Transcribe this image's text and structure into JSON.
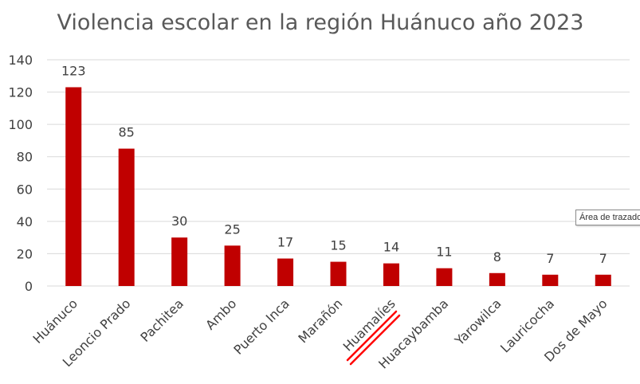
{
  "chart_data": {
    "type": "bar",
    "title": "Violencia escolar en la región Huánuco año 2023",
    "categories": [
      "Huánuco",
      "Leoncio Prado",
      "Pachitea",
      "Ambo",
      "Puerto Inca",
      "Marañón",
      "Huamalíes",
      "Huacaybamba",
      "Yarowilca",
      "Lauricocha",
      "Dos de Mayo"
    ],
    "values": [
      123,
      85,
      30,
      25,
      17,
      15,
      14,
      11,
      8,
      7,
      7
    ],
    "ylim": [
      0,
      140
    ],
    "yticks": [
      0,
      20,
      40,
      60,
      80,
      100,
      120,
      140
    ],
    "grid": true,
    "data_labels": true,
    "bar_color": "#c00000"
  },
  "annotation": {
    "tooltip": "Área de trazado",
    "mark_color": "#ff0000"
  }
}
